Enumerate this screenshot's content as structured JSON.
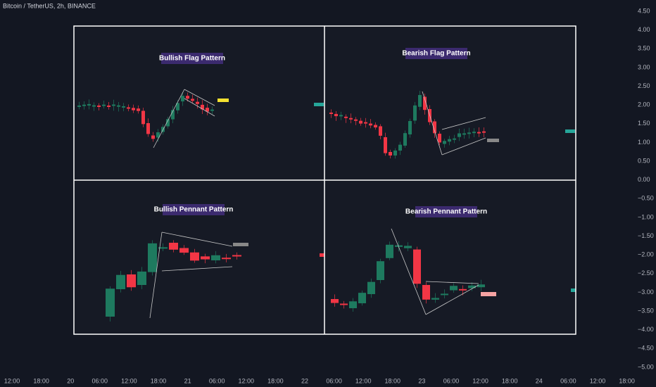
{
  "header": {
    "title": "Bitcoin / TetherUS, 2h, BINANCE"
  },
  "price_axis": {
    "labels": [
      "4.50",
      "4.00",
      "3.50",
      "3.00",
      "2.50",
      "2.00",
      "1.50",
      "1.00",
      "0.50",
      "0.00",
      "−0.50",
      "−1.00",
      "−1.50",
      "−2.00",
      "−2.50",
      "−3.00",
      "−3.50",
      "−4.00",
      "−4.50",
      "−5.00"
    ]
  },
  "time_axis": {
    "labels": [
      "12:00",
      "18:00",
      "20",
      "06:00",
      "12:00",
      "18:00",
      "21",
      "06:00",
      "12:00",
      "18:00",
      "22",
      "06:00",
      "12:00",
      "18:00",
      "23",
      "06:00",
      "12:00",
      "18:00",
      "24",
      "06:00",
      "12:00",
      "18:00"
    ]
  },
  "panels": [
    {
      "title": "Bullish Flag Pattern"
    },
    {
      "title": "Bearish Flag Pattern"
    },
    {
      "title": "Bullish Pennant Pattern"
    },
    {
      "title": "Bearish Pennant Pattern"
    }
  ]
}
